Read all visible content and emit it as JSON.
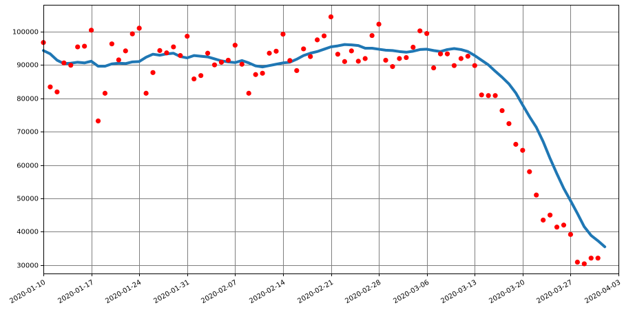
{
  "chart_data": {
    "type": "scatter",
    "title": "",
    "xlabel": "",
    "ylabel": "",
    "grid": true,
    "x_range": [
      "2020-01-10",
      "2020-04-03"
    ],
    "ylim": [
      27500,
      108000
    ],
    "x_ticks": [
      "2020-01-10",
      "2020-01-17",
      "2020-01-24",
      "2020-01-31",
      "2020-02-07",
      "2020-02-14",
      "2020-02-21",
      "2020-02-28",
      "2020-03-06",
      "2020-03-13",
      "2020-03-20",
      "2020-03-27",
      "2020-04-03"
    ],
    "y_ticks": [
      30000,
      40000,
      50000,
      60000,
      70000,
      80000,
      90000,
      100000
    ],
    "series": [
      {
        "kind": "points",
        "color": "#ff0000",
        "points": [
          [
            "2020-01-10",
            96700
          ],
          [
            "2020-01-11",
            83400
          ],
          [
            "2020-01-12",
            81900
          ],
          [
            "2020-01-13",
            90600
          ],
          [
            "2020-01-14",
            89900
          ],
          [
            "2020-01-15",
            95400
          ],
          [
            "2020-01-16",
            95600
          ],
          [
            "2020-01-17",
            100400
          ],
          [
            "2020-01-18",
            73200
          ],
          [
            "2020-01-19",
            81500
          ],
          [
            "2020-01-20",
            96300
          ],
          [
            "2020-01-21",
            91500
          ],
          [
            "2020-01-22",
            94200
          ],
          [
            "2020-01-23",
            99300
          ],
          [
            "2020-01-24",
            101000
          ],
          [
            "2020-01-25",
            81500
          ],
          [
            "2020-01-26",
            87700
          ],
          [
            "2020-01-27",
            94300
          ],
          [
            "2020-01-28",
            93600
          ],
          [
            "2020-01-29",
            95400
          ],
          [
            "2020-01-30",
            92800
          ],
          [
            "2020-01-31",
            98600
          ],
          [
            "2020-02-01",
            85800
          ],
          [
            "2020-02-02",
            86800
          ],
          [
            "2020-02-03",
            93500
          ],
          [
            "2020-02-04",
            90000
          ],
          [
            "2020-02-05",
            90800
          ],
          [
            "2020-02-06",
            91400
          ],
          [
            "2020-02-07",
            95900
          ],
          [
            "2020-02-08",
            90200
          ],
          [
            "2020-02-09",
            81500
          ],
          [
            "2020-02-10",
            87100
          ],
          [
            "2020-02-11",
            87500
          ],
          [
            "2020-02-12",
            93500
          ],
          [
            "2020-02-13",
            94100
          ],
          [
            "2020-02-14",
            99200
          ],
          [
            "2020-02-15",
            91300
          ],
          [
            "2020-02-16",
            88300
          ],
          [
            "2020-02-17",
            94800
          ],
          [
            "2020-02-18",
            92500
          ],
          [
            "2020-02-19",
            97500
          ],
          [
            "2020-02-20",
            98700
          ],
          [
            "2020-02-21",
            104400
          ],
          [
            "2020-02-22",
            93200
          ],
          [
            "2020-02-23",
            91000
          ],
          [
            "2020-02-24",
            94200
          ],
          [
            "2020-02-25",
            91100
          ],
          [
            "2020-02-26",
            91900
          ],
          [
            "2020-02-27",
            98800
          ],
          [
            "2020-02-28",
            102200
          ],
          [
            "2020-02-29",
            91400
          ],
          [
            "2020-03-01",
            89500
          ],
          [
            "2020-03-02",
            91900
          ],
          [
            "2020-03-03",
            92200
          ],
          [
            "2020-03-04",
            95300
          ],
          [
            "2020-03-05",
            100200
          ],
          [
            "2020-03-06",
            99400
          ],
          [
            "2020-03-07",
            89100
          ],
          [
            "2020-03-08",
            93300
          ],
          [
            "2020-03-09",
            93300
          ],
          [
            "2020-03-10",
            89800
          ],
          [
            "2020-03-11",
            91900
          ],
          [
            "2020-03-12",
            92600
          ],
          [
            "2020-03-13",
            89800
          ],
          [
            "2020-03-14",
            81000
          ],
          [
            "2020-03-15",
            80800
          ],
          [
            "2020-03-16",
            80800
          ],
          [
            "2020-03-17",
            76300
          ],
          [
            "2020-03-18",
            72400
          ],
          [
            "2020-03-19",
            66200
          ],
          [
            "2020-03-20",
            64400
          ],
          [
            "2020-03-21",
            58000
          ],
          [
            "2020-03-22",
            51000
          ],
          [
            "2020-03-23",
            43500
          ],
          [
            "2020-03-24",
            45000
          ],
          [
            "2020-03-25",
            41400
          ],
          [
            "2020-03-26",
            42000
          ],
          [
            "2020-03-27",
            39200
          ],
          [
            "2020-03-28",
            30900
          ],
          [
            "2020-03-29",
            30400
          ],
          [
            "2020-03-30",
            32100
          ],
          [
            "2020-03-31",
            32100
          ]
        ]
      },
      {
        "kind": "line",
        "color": "#1f77b4",
        "points": [
          [
            "2020-01-10",
            94300
          ],
          [
            "2020-01-11",
            93300
          ],
          [
            "2020-01-12",
            91400
          ],
          [
            "2020-01-13",
            90400
          ],
          [
            "2020-01-14",
            90500
          ],
          [
            "2020-01-15",
            90800
          ],
          [
            "2020-01-16",
            90600
          ],
          [
            "2020-01-17",
            91100
          ],
          [
            "2020-01-18",
            89600
          ],
          [
            "2020-01-19",
            89600
          ],
          [
            "2020-01-20",
            90300
          ],
          [
            "2020-01-21",
            90500
          ],
          [
            "2020-01-22",
            90400
          ],
          [
            "2020-01-23",
            90900
          ],
          [
            "2020-01-24",
            91000
          ],
          [
            "2020-01-25",
            92300
          ],
          [
            "2020-01-26",
            93200
          ],
          [
            "2020-01-27",
            92900
          ],
          [
            "2020-01-28",
            93300
          ],
          [
            "2020-01-29",
            93500
          ],
          [
            "2020-01-30",
            92500
          ],
          [
            "2020-01-31",
            92100
          ],
          [
            "2020-02-01",
            92800
          ],
          [
            "2020-02-02",
            92600
          ],
          [
            "2020-02-03",
            92400
          ],
          [
            "2020-02-04",
            91800
          ],
          [
            "2020-02-05",
            91200
          ],
          [
            "2020-02-06",
            90900
          ],
          [
            "2020-02-07",
            90700
          ],
          [
            "2020-02-08",
            91300
          ],
          [
            "2020-02-09",
            90600
          ],
          [
            "2020-02-10",
            89700
          ],
          [
            "2020-02-11",
            89400
          ],
          [
            "2020-02-12",
            89800
          ],
          [
            "2020-02-13",
            90200
          ],
          [
            "2020-02-14",
            90600
          ],
          [
            "2020-02-15",
            90800
          ],
          [
            "2020-02-16",
            91700
          ],
          [
            "2020-02-17",
            92800
          ],
          [
            "2020-02-18",
            93500
          ],
          [
            "2020-02-19",
            94000
          ],
          [
            "2020-02-20",
            94700
          ],
          [
            "2020-02-21",
            95400
          ],
          [
            "2020-02-22",
            95700
          ],
          [
            "2020-02-23",
            96100
          ],
          [
            "2020-02-24",
            96000
          ],
          [
            "2020-02-25",
            95800
          ],
          [
            "2020-02-26",
            95000
          ],
          [
            "2020-02-27",
            95000
          ],
          [
            "2020-02-28",
            94700
          ],
          [
            "2020-02-29",
            94400
          ],
          [
            "2020-03-01",
            94300
          ],
          [
            "2020-03-02",
            94000
          ],
          [
            "2020-03-03",
            93800
          ],
          [
            "2020-03-04",
            94100
          ],
          [
            "2020-03-05",
            94600
          ],
          [
            "2020-03-06",
            94700
          ],
          [
            "2020-03-07",
            94300
          ],
          [
            "2020-03-08",
            94000
          ],
          [
            "2020-03-09",
            94600
          ],
          [
            "2020-03-10",
            94900
          ],
          [
            "2020-03-11",
            94600
          ],
          [
            "2020-03-12",
            94000
          ],
          [
            "2020-03-13",
            92800
          ],
          [
            "2020-03-14",
            91400
          ],
          [
            "2020-03-15",
            90000
          ],
          [
            "2020-03-16",
            88100
          ],
          [
            "2020-03-17",
            86300
          ],
          [
            "2020-03-18",
            84300
          ],
          [
            "2020-03-19",
            81600
          ],
          [
            "2020-03-20",
            78000
          ],
          [
            "2020-03-21",
            74500
          ],
          [
            "2020-03-22",
            71300
          ],
          [
            "2020-03-23",
            67000
          ],
          [
            "2020-03-24",
            62000
          ],
          [
            "2020-03-25",
            57400
          ],
          [
            "2020-03-26",
            53000
          ],
          [
            "2020-03-27",
            49300
          ],
          [
            "2020-03-28",
            45500
          ],
          [
            "2020-03-29",
            41500
          ],
          [
            "2020-03-30",
            38900
          ],
          [
            "2020-03-31",
            37300
          ],
          [
            "2020-04-01",
            35500
          ]
        ]
      }
    ]
  }
}
